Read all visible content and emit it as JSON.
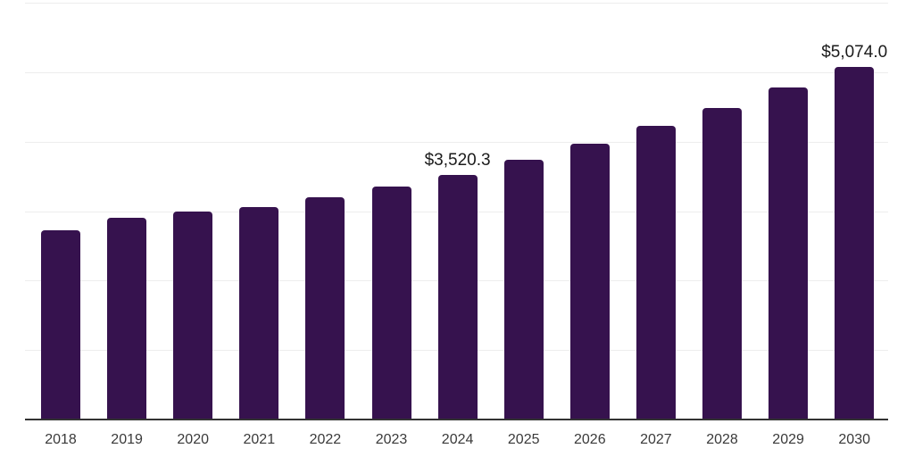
{
  "chart_data": {
    "type": "bar",
    "title": "",
    "xlabel": "",
    "ylabel": "",
    "categories": [
      "2018",
      "2019",
      "2020",
      "2021",
      "2022",
      "2023",
      "2024",
      "2025",
      "2026",
      "2027",
      "2028",
      "2029",
      "2030"
    ],
    "values": [
      2725,
      2905,
      2990,
      3060,
      3195,
      3350,
      3520.3,
      3740,
      3975,
      4225,
      4490,
      4775,
      5074.0
    ],
    "values_precision_note": "only 2024 and 2030 are labeled in the chart; other values estimated from gridlines (step 1000)",
    "data_labels": [
      {
        "category": "2024",
        "text": "$3,520.3"
      },
      {
        "category": "2030",
        "text": "$5,074.0"
      }
    ],
    "ylim": [
      0,
      6000
    ],
    "grid_step": 1000,
    "grid": true,
    "y_tick_labels_visible": false,
    "legend_visible": false,
    "colors": {
      "bar": "#36124E",
      "grid": "#ededed",
      "axis": "#333333",
      "tick_label": "#3a3a3a",
      "data_label": "#1b1b1b",
      "background": "#ffffff"
    }
  }
}
